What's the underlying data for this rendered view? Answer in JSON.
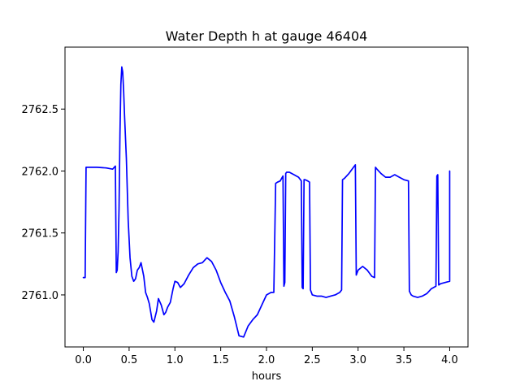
{
  "chart_data": {
    "type": "line",
    "title": "Water Depth h at gauge 46404",
    "xlabel": "hours",
    "ylabel": "",
    "xlim": [
      -0.2,
      4.2
    ],
    "ylim": [
      2760.58,
      2763.0
    ],
    "xticks": [
      0.0,
      0.5,
      1.0,
      1.5,
      2.0,
      2.5,
      3.0,
      3.5,
      4.0
    ],
    "xtick_labels": [
      "0.0",
      "0.5",
      "1.0",
      "1.5",
      "2.0",
      "2.5",
      "3.0",
      "3.5",
      "4.0"
    ],
    "yticks": [
      2761.0,
      2761.5,
      2762.0,
      2762.5
    ],
    "ytick_labels": [
      "2761.0",
      "2761.5",
      "2762.0",
      "2762.5"
    ],
    "grid": false,
    "series": [
      {
        "color": "#0000ff",
        "x": [
          0.0,
          0.02,
          0.03,
          0.05,
          0.15,
          0.25,
          0.32,
          0.35,
          0.36,
          0.37,
          0.38,
          0.39,
          0.4,
          0.41,
          0.42,
          0.43,
          0.44,
          0.45,
          0.47,
          0.49,
          0.51,
          0.53,
          0.55,
          0.57,
          0.59,
          0.61,
          0.63,
          0.66,
          0.68,
          0.7,
          0.72,
          0.75,
          0.77,
          0.8,
          0.82,
          0.85,
          0.88,
          0.9,
          0.92,
          0.95,
          0.98,
          1.0,
          1.03,
          1.06,
          1.1,
          1.15,
          1.2,
          1.25,
          1.3,
          1.35,
          1.4,
          1.45,
          1.5,
          1.55,
          1.6,
          1.65,
          1.7,
          1.75,
          1.8,
          1.85,
          1.9,
          1.95,
          2.0,
          2.05,
          2.08,
          2.1,
          2.12,
          2.15,
          2.18,
          2.19,
          2.2,
          2.21,
          2.22,
          2.25,
          2.3,
          2.35,
          2.38,
          2.39,
          2.4,
          2.41,
          2.42,
          2.45,
          2.47,
          2.48,
          2.49,
          2.5,
          2.55,
          2.6,
          2.65,
          2.7,
          2.75,
          2.8,
          2.82,
          2.83,
          2.85,
          2.9,
          2.95,
          2.97,
          2.98,
          3.0,
          3.05,
          3.1,
          3.15,
          3.18,
          3.19,
          3.2,
          3.25,
          3.3,
          3.35,
          3.4,
          3.45,
          3.5,
          3.55,
          3.56,
          3.58,
          3.6,
          3.65,
          3.7,
          3.75,
          3.8,
          3.85,
          3.86,
          3.87,
          3.88,
          3.9,
          3.95,
          4.0,
          4.0
        ],
        "y": [
          2761.14,
          2761.14,
          2762.03,
          2762.03,
          2762.03,
          2762.025,
          2762.015,
          2762.04,
          2761.18,
          2761.2,
          2761.35,
          2761.7,
          2762.3,
          2762.7,
          2762.84,
          2762.8,
          2762.65,
          2762.45,
          2762.1,
          2761.6,
          2761.3,
          2761.15,
          2761.11,
          2761.13,
          2761.2,
          2761.22,
          2761.26,
          2761.15,
          2761.02,
          2760.98,
          2760.93,
          2760.8,
          2760.78,
          2760.87,
          2760.97,
          2760.92,
          2760.84,
          2760.86,
          2760.9,
          2760.94,
          2761.05,
          2761.11,
          2761.1,
          2761.06,
          2761.09,
          2761.16,
          2761.22,
          2761.25,
          2761.26,
          2761.3,
          2761.27,
          2761.2,
          2761.1,
          2761.02,
          2760.95,
          2760.82,
          2760.67,
          2760.66,
          2760.75,
          2760.8,
          2760.84,
          2760.92,
          2761.0,
          2761.02,
          2761.02,
          2761.9,
          2761.91,
          2761.92,
          2761.96,
          2761.07,
          2761.1,
          2761.98,
          2761.99,
          2761.99,
          2761.97,
          2761.95,
          2761.92,
          2761.06,
          2761.05,
          2761.93,
          2761.93,
          2761.92,
          2761.91,
          2761.04,
          2761.02,
          2761.0,
          2760.99,
          2760.99,
          2760.98,
          2760.99,
          2761.0,
          2761.02,
          2761.04,
          2761.93,
          2761.94,
          2761.98,
          2762.03,
          2762.05,
          2761.16,
          2761.2,
          2761.23,
          2761.2,
          2761.15,
          2761.14,
          2762.03,
          2762.02,
          2761.98,
          2761.95,
          2761.95,
          2761.97,
          2761.95,
          2761.93,
          2761.92,
          2761.03,
          2761.0,
          2760.99,
          2760.98,
          2760.99,
          2761.01,
          2761.05,
          2761.07,
          2761.96,
          2761.97,
          2761.08,
          2761.09,
          2761.1,
          2761.11,
          2762.0
        ]
      }
    ]
  }
}
